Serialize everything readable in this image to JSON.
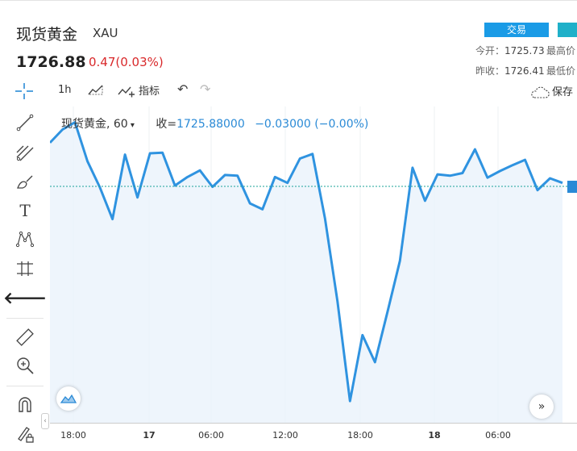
{
  "header": {
    "title": "现货黄金",
    "symbol": "XAU",
    "price": "1726.88",
    "change": "0.47(0.03%)",
    "trade_label": "交易",
    "stats": {
      "open_label": "今开：",
      "open_value": "1725.73",
      "high_label": "最高价",
      "prev_close_label": "昨收：",
      "prev_close_value": "1726.41",
      "low_label": "最低价"
    }
  },
  "toolbar": {
    "interval": "1h",
    "indicators_label": "指标",
    "save_label": "保存"
  },
  "legend": {
    "symbol_label": "现货黄金, 60",
    "close_label": "收=",
    "close_value": "1725.88000",
    "change_value": "−0.03000 (−0.00%)"
  },
  "x_axis": {
    "ticks": [
      "18:00",
      "17",
      "06:00",
      "12:00",
      "18:00",
      "18",
      "06:00"
    ]
  },
  "chart_data": {
    "type": "line",
    "title": "",
    "xlabel": "",
    "ylabel": "",
    "ylim": [
      1690,
      1738
    ],
    "last_price": 1725.88,
    "series": [
      {
        "values": [
          1732.5,
          1734.5,
          1735.6,
          1729.7,
          1725.7,
          1720.9,
          1730.7,
          1724.2,
          1730.9,
          1731.0,
          1726.0,
          1727.3,
          1728.3,
          1725.8,
          1727.6,
          1727.5,
          1723.3,
          1722.4,
          1727.3,
          1726.4,
          1730.1,
          1730.8,
          1721.0,
          1708.4,
          1693.3,
          1703.3,
          1699.2,
          1706.8,
          1714.6,
          1728.7,
          1723.7,
          1727.7,
          1727.5,
          1727.9,
          1731.5,
          1727.2,
          1728.2,
          1729.1,
          1729.9,
          1725.3,
          1727.1,
          1726.4
        ]
      }
    ],
    "colors": {
      "line": "#2f93e0",
      "area": "#eaf3fb",
      "last_price_line": "#1aa39a"
    }
  }
}
